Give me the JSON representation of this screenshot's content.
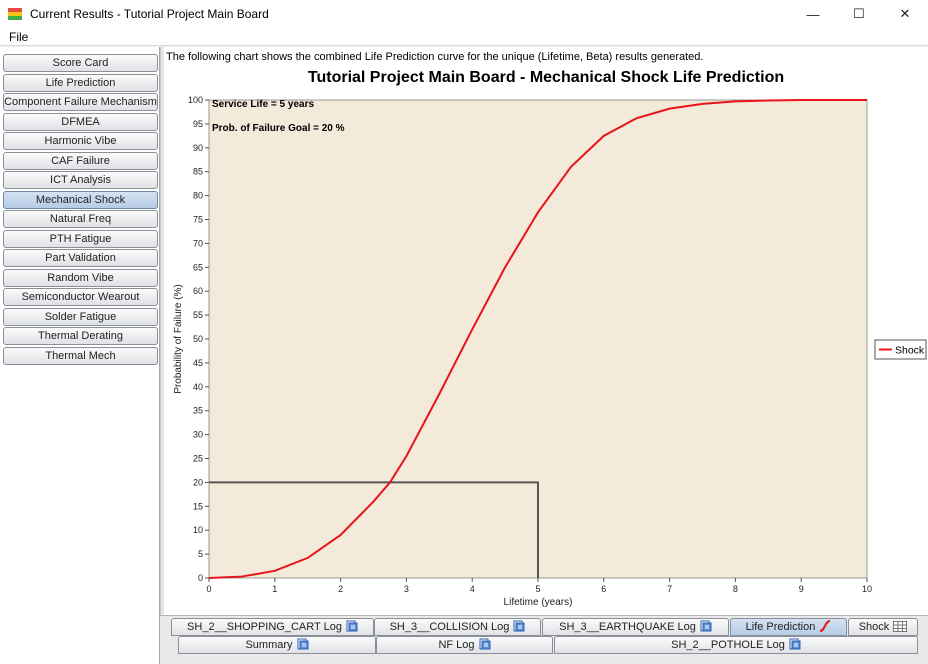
{
  "window": {
    "title": "Current Results - Tutorial Project Main Board",
    "minimize_glyph": "—",
    "maximize_glyph": "☐",
    "close_glyph": "✕"
  },
  "menu": {
    "file": "File"
  },
  "sidebar": {
    "items": [
      {
        "label": "Score Card"
      },
      {
        "label": "Life Prediction"
      },
      {
        "label": "Component Failure Mechanism"
      },
      {
        "label": "DFMEA"
      },
      {
        "label": "Harmonic Vibe"
      },
      {
        "label": "CAF Failure"
      },
      {
        "label": "ICT Analysis"
      },
      {
        "label": "Mechanical Shock",
        "active": true
      },
      {
        "label": "Natural Freq"
      },
      {
        "label": "PTH Fatigue"
      },
      {
        "label": "Part Validation"
      },
      {
        "label": "Random Vibe"
      },
      {
        "label": "Semiconductor Wearout"
      },
      {
        "label": "Solder Fatigue"
      },
      {
        "label": "Thermal Derating"
      },
      {
        "label": "Thermal Mech"
      }
    ]
  },
  "main": {
    "intro": "The following chart shows the combined Life Prediction curve for the unique (Lifetime, Beta) results generated."
  },
  "chart_data": {
    "type": "line",
    "title": "Tutorial Project Main Board - Mechanical Shock Life Prediction",
    "xlabel": "Lifetime (years)",
    "ylabel": "Probability of Failure (%)",
    "xlim": [
      0,
      10
    ],
    "ylim": [
      0,
      100
    ],
    "xticks": [
      "0",
      "1",
      "2",
      "3",
      "4",
      "5",
      "6",
      "7",
      "8",
      "9",
      "10"
    ],
    "yticks": [
      "0",
      "5",
      "10",
      "15",
      "20",
      "25",
      "30",
      "35",
      "40",
      "45",
      "50",
      "55",
      "60",
      "65",
      "70",
      "75",
      "80",
      "85",
      "90",
      "95",
      "100"
    ],
    "annotations": [
      "Service Life = 5 years",
      "Prob. of Failure Goal = 20 %"
    ],
    "legend": "right",
    "series": [
      {
        "name": "Shock",
        "color": "#e8141a",
        "x": [
          0,
          0.5,
          1.0,
          1.5,
          2.0,
          2.5,
          2.75,
          3.0,
          3.5,
          4.0,
          4.5,
          5.0,
          5.5,
          6.0,
          6.5,
          7.0,
          7.5,
          8.0,
          8.5,
          9.0,
          9.5,
          10.0
        ],
        "y": [
          0,
          0.3,
          1.5,
          4.2,
          9,
          16,
          20,
          25.5,
          38.5,
          52,
          65,
          76.5,
          86,
          92.5,
          96.2,
          98.2,
          99.2,
          99.7,
          99.9,
          100,
          100,
          100
        ]
      }
    ],
    "reference_lines": {
      "service_life_x": 5,
      "goal_y": 20
    }
  },
  "tabs": {
    "row1": [
      {
        "label": "SH_2__SHOPPING_CART Log",
        "icon": "document-icon"
      },
      {
        "label": "SH_3__COLLISION Log",
        "icon": "document-icon"
      },
      {
        "label": "SH_3__EARTHQUAKE Log",
        "icon": "document-icon"
      },
      {
        "label": "Life Prediction",
        "icon": "curve-icon",
        "active": true
      },
      {
        "label": "Shock",
        "icon": "grid-icon"
      }
    ],
    "row2": [
      {
        "label": "Summary",
        "icon": "document-icon"
      },
      {
        "label": "NF Log",
        "icon": "document-icon"
      },
      {
        "label": "SH_2__POTHOLE Log",
        "icon": "document-icon"
      }
    ]
  }
}
